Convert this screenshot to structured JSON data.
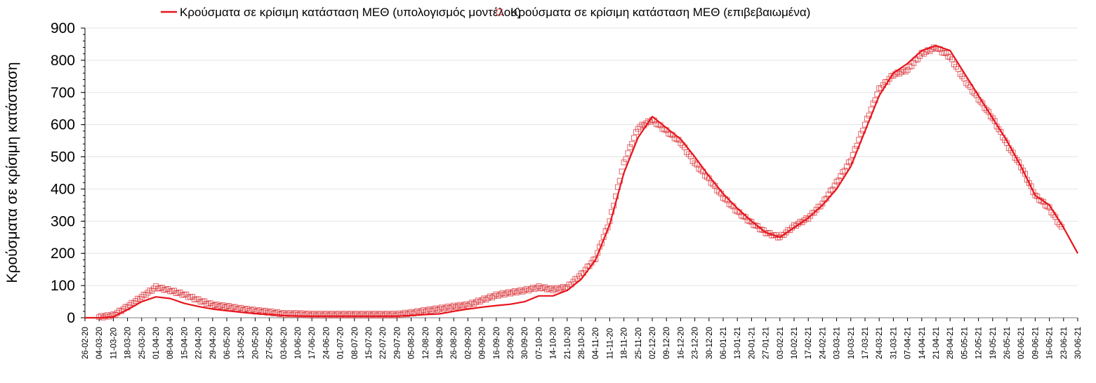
{
  "chart_data": {
    "type": "line",
    "title": "",
    "xlabel": "",
    "ylabel": "Κρούσματα σε κρίσιμη κατάσταση",
    "ylim": [
      0,
      900
    ],
    "yticks": [
      0,
      100,
      200,
      300,
      400,
      500,
      600,
      700,
      800,
      900
    ],
    "grid": true,
    "legend_position": "top-center",
    "x": [
      "26-02-20",
      "04-03-20",
      "11-03-20",
      "18-03-20",
      "25-03-20",
      "01-04-20",
      "08-04-20",
      "15-04-20",
      "22-04-20",
      "29-04-20",
      "06-05-20",
      "13-05-20",
      "20-05-20",
      "27-05-20",
      "03-06-20",
      "10-06-20",
      "17-06-20",
      "24-06-20",
      "01-07-20",
      "08-07-20",
      "15-07-20",
      "22-07-20",
      "29-07-20",
      "05-08-20",
      "12-08-20",
      "19-08-20",
      "26-08-20",
      "02-09-20",
      "09-09-20",
      "16-09-20",
      "23-09-20",
      "30-09-20",
      "07-10-20",
      "14-10-20",
      "21-10-20",
      "28-10-20",
      "04-11-20",
      "11-11-20",
      "18-11-20",
      "25-11-20",
      "02-12-20",
      "09-12-20",
      "16-12-20",
      "23-12-20",
      "30-12-20",
      "06-01-21",
      "13-01-21",
      "20-01-21",
      "27-01-21",
      "03-02-21",
      "10-02-21",
      "17-02-21",
      "24-02-21",
      "03-03-21",
      "10-03-21",
      "17-03-21",
      "24-03-21",
      "31-03-21",
      "07-04-21",
      "14-04-21",
      "21-04-21",
      "28-04-21",
      "05-05-21",
      "12-05-21",
      "19-05-21",
      "26-05-21",
      "02-06-21",
      "09-06-21",
      "16-06-21",
      "23-06-21",
      "30-06-21"
    ],
    "series": [
      {
        "name": "Κρούσματα σε κρίσιμη κατάσταση ΜΕΘ (υπολογισμός μοντέλου)",
        "style": "line",
        "color": "#e8141b",
        "values": [
          0,
          0,
          3,
          25,
          50,
          65,
          60,
          45,
          35,
          27,
          22,
          17,
          13,
          10,
          7,
          5,
          5,
          5,
          5,
          5,
          5,
          5,
          5,
          7,
          10,
          12,
          20,
          27,
          33,
          38,
          42,
          50,
          68,
          68,
          85,
          120,
          180,
          290,
          450,
          560,
          625,
          590,
          555,
          500,
          440,
          385,
          340,
          300,
          265,
          250,
          280,
          310,
          350,
          400,
          470,
          580,
          690,
          760,
          790,
          830,
          845,
          830,
          760,
          690,
          620,
          550,
          470,
          380,
          350,
          280,
          200
        ]
      },
      {
        "name": "Κρούσματα σε κρίσιμη κατάσταση ΜΕΘ (επιβεβαιωμένα)",
        "style": "square-markers",
        "color": "#d9343a",
        "values": [
          null,
          2,
          8,
          35,
          65,
          95,
          85,
          72,
          55,
          40,
          35,
          28,
          22,
          18,
          12,
          12,
          10,
          10,
          10,
          10,
          10,
          10,
          10,
          15,
          22,
          28,
          35,
          40,
          55,
          70,
          78,
          85,
          95,
          88,
          95,
          135,
          185,
          300,
          480,
          590,
          615,
          580,
          545,
          480,
          430,
          375,
          330,
          295,
          265,
          250,
          285,
          310,
          355,
          420,
          490,
          600,
          710,
          755,
          770,
          820,
          840,
          810,
          740,
          680,
          620,
          540,
          470,
          380,
          340,
          270,
          null
        ]
      }
    ]
  }
}
